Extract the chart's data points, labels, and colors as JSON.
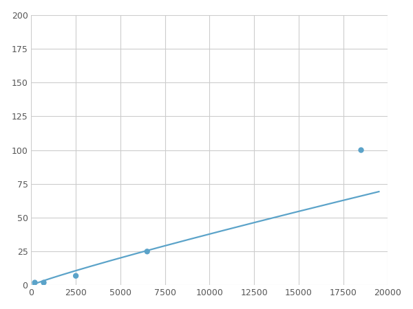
{
  "x": [
    200,
    700,
    2500,
    6500,
    18500
  ],
  "y": [
    2,
    2,
    7,
    25,
    100
  ],
  "line_color": "#5ba3c9",
  "marker_color": "#5ba3c9",
  "marker_size": 6,
  "xlim": [
    0,
    20000
  ],
  "ylim": [
    0,
    200
  ],
  "xticks": [
    0,
    2500,
    5000,
    7500,
    10000,
    12500,
    15000,
    17500,
    20000
  ],
  "yticks": [
    0,
    25,
    50,
    75,
    100,
    125,
    150,
    175,
    200
  ],
  "grid_color": "#cccccc",
  "background_color": "#ffffff",
  "line_width": 1.6,
  "figsize": [
    6.0,
    4.5
  ],
  "dpi": 100
}
